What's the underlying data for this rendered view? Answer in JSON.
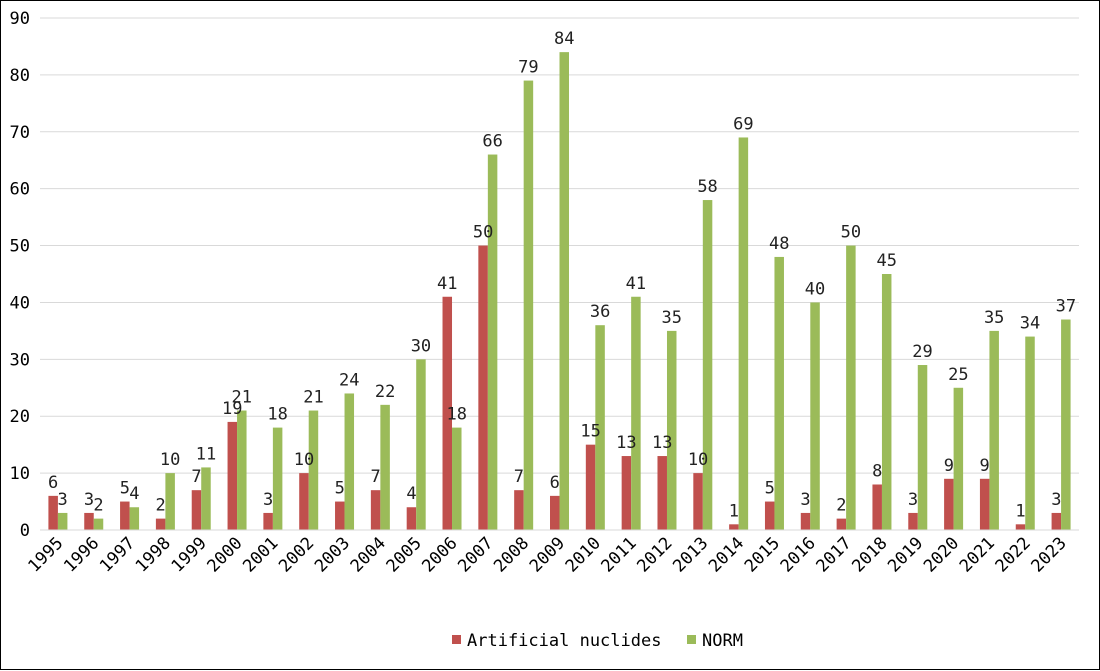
{
  "chart_data": {
    "type": "bar",
    "categories": [
      "1995",
      "1996",
      "1997",
      "1998",
      "1999",
      "2000",
      "2001",
      "2002",
      "2003",
      "2004",
      "2005",
      "2006",
      "2007",
      "2008",
      "2009",
      "2010",
      "2011",
      "2012",
      "2013",
      "2014",
      "2015",
      "2016",
      "2017",
      "2018",
      "2019",
      "2020",
      "2021",
      "2022",
      "2023"
    ],
    "series": [
      {
        "name": "Artificial nuclides",
        "color": "#c0504d",
        "values": [
          6,
          3,
          5,
          2,
          7,
          19,
          3,
          10,
          5,
          7,
          4,
          41,
          50,
          7,
          6,
          15,
          13,
          13,
          10,
          1,
          5,
          3,
          2,
          8,
          3,
          9,
          9,
          1,
          3
        ]
      },
      {
        "name": "NORM",
        "color": "#9bbb59",
        "values": [
          3,
          2,
          4,
          10,
          11,
          21,
          18,
          21,
          24,
          22,
          30,
          18,
          66,
          79,
          84,
          36,
          41,
          35,
          58,
          69,
          48,
          40,
          50,
          45,
          29,
          25,
          35,
          34,
          37
        ]
      }
    ],
    "ylim": [
      0,
      90
    ],
    "yticks": [
      0,
      10,
      20,
      30,
      40,
      50,
      60,
      70,
      80,
      90
    ],
    "grid": true,
    "legend_position": "bottom",
    "title": "",
    "xlabel": "",
    "ylabel": ""
  }
}
